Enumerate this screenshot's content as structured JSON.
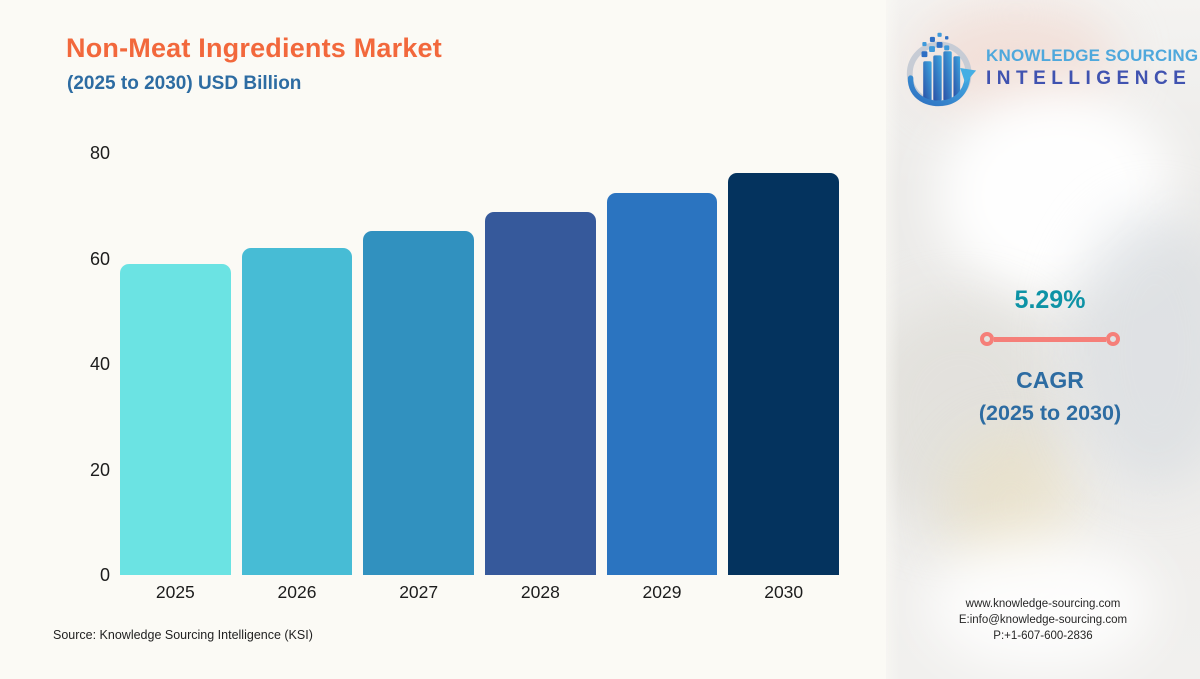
{
  "header": {
    "title": "Non-Meat Ingredients Market",
    "subtitle": "(2025 to 2030) USD Billion",
    "title_color": "#F2683C",
    "subtitle_color": "#2D6CA2"
  },
  "logo": {
    "line1": "KNOWLEDGE SOURCING",
    "line2": "INTELLIGENCE",
    "line1_color": "#4FA8DC",
    "line2_color": "#4053B0",
    "icon": "globe-bars-arrow-icon"
  },
  "chart_data": {
    "type": "bar",
    "title": "Non-Meat Ingredients Market",
    "subtitle": "(2025 to 2030) USD Billion",
    "categories": [
      "2025",
      "2026",
      "2027",
      "2028",
      "2029",
      "2030"
    ],
    "values": [
      58.9,
      62.0,
      65.3,
      68.8,
      72.4,
      76.2
    ],
    "bar_colors": [
      "#6BE3E3",
      "#47BCD5",
      "#3191BF",
      "#36599B",
      "#2B74C0",
      "#04335E"
    ],
    "xlabel": "",
    "ylabel": "",
    "ylim": [
      0,
      80
    ],
    "yticks": [
      0,
      20,
      40,
      60,
      80
    ],
    "grid": false,
    "legend": false
  },
  "cagr": {
    "value": "5.29%",
    "label": "CAGR",
    "period": "(2025 to 2030)",
    "value_color": "#0E93A6",
    "label_color": "#2D6CA2",
    "line_color": "#F57F79"
  },
  "source_note": "Source: Knowledge Sourcing Intelligence (KSI)",
  "contact": {
    "website": "www.knowledge-sourcing.com",
    "email": "E:info@knowledge-sourcing.com",
    "phone": "P:+1-607-600-2836"
  }
}
